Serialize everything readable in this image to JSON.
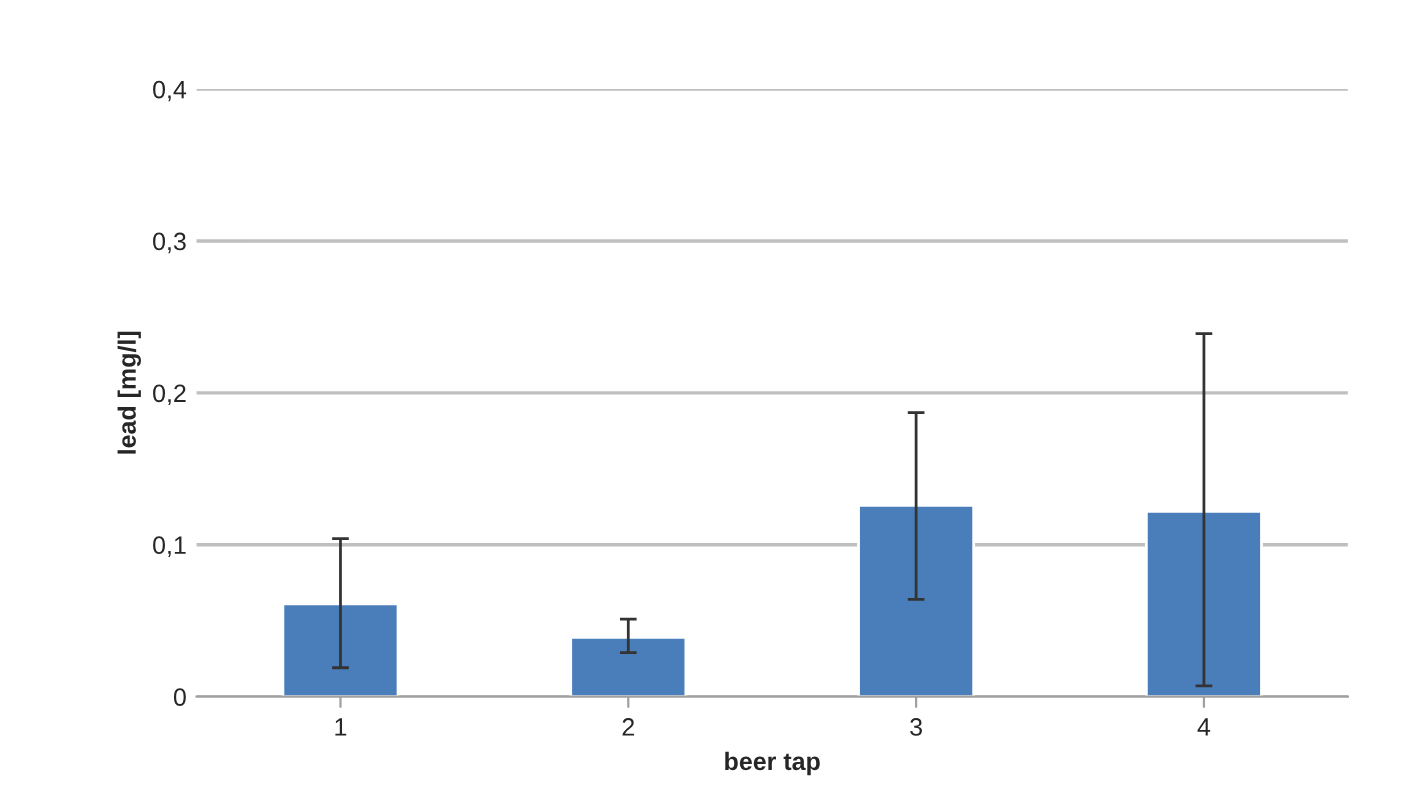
{
  "chart_data": {
    "type": "bar",
    "xlabel": "beer tap",
    "ylabel": "lead [mg/l]",
    "categories": [
      "1",
      "2",
      "3",
      "4"
    ],
    "values": [
      0.061,
      0.039,
      0.126,
      0.122
    ],
    "errors": [
      [
        0.019,
        0.104
      ],
      [
        0.029,
        0.051
      ],
      [
        0.064,
        0.187
      ],
      [
        0.007,
        0.239
      ]
    ],
    "color": "#4a7ebb",
    "ylim": [
      0,
      0.4
    ],
    "yticks": [
      {
        "value": 0,
        "label": "0"
      },
      {
        "value": 0.1,
        "label": "0,1"
      },
      {
        "value": 0.2,
        "label": "0,2"
      },
      {
        "value": 0.3,
        "label": "0,3"
      },
      {
        "value": 0.4,
        "label": "0,4"
      }
    ],
    "grid": "y",
    "legend": false
  }
}
